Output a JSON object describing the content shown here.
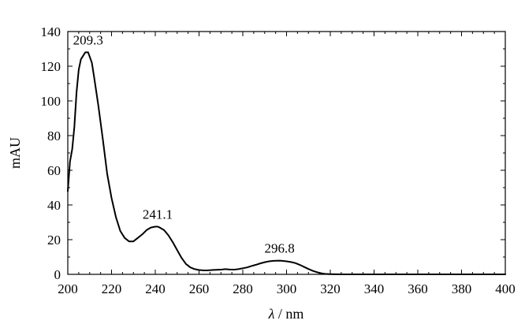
{
  "chart_data": {
    "type": "line",
    "xlabel_symbol": "λ",
    "xlabel_unit": " / nm",
    "ylabel": "mAU",
    "xlim": [
      200,
      400
    ],
    "ylim": [
      0,
      140
    ],
    "x_ticks": [
      200,
      220,
      240,
      260,
      280,
      300,
      320,
      340,
      360,
      380,
      400
    ],
    "y_ticks": [
      0,
      20,
      40,
      60,
      80,
      100,
      120,
      140
    ],
    "grid": false,
    "series": [
      {
        "x": [
          200,
          201,
          202,
          203,
          204,
          205,
          206,
          207,
          208,
          209.3,
          211,
          212,
          214,
          216,
          218,
          220,
          222,
          224,
          226,
          228,
          230,
          232,
          234,
          236,
          238,
          240,
          241.1,
          242,
          244,
          246,
          248,
          250,
          252,
          254,
          256,
          258,
          260,
          262,
          264,
          266,
          268,
          270,
          272,
          274,
          276,
          278,
          280,
          282,
          284,
          286,
          288,
          290,
          292,
          294,
          296.8,
          298,
          300,
          302,
          304,
          306,
          308,
          310,
          312,
          314,
          316,
          318,
          320,
          322,
          325,
          330,
          340,
          360,
          380,
          400
        ],
        "y": [
          48,
          65,
          72,
          85,
          105,
          118,
          124,
          126,
          128,
          128,
          122,
          114,
          97,
          78,
          58,
          44,
          33,
          25,
          21,
          19,
          19,
          21,
          23,
          25.5,
          27,
          27.5,
          27.5,
          27,
          25.5,
          22.5,
          18.5,
          14,
          9.5,
          6,
          4,
          3,
          2.5,
          2.3,
          2.3,
          2.5,
          2.6,
          2.7,
          3,
          2.8,
          2.7,
          3,
          3.5,
          4,
          4.8,
          5.5,
          6.3,
          7,
          7.5,
          7.8,
          7.9,
          7.8,
          7.5,
          7.1,
          6.5,
          5.5,
          4.3,
          3.1,
          2,
          1.2,
          0.6,
          0.2,
          0.1,
          0.05,
          0,
          0,
          0,
          0,
          0,
          0
        ]
      }
    ],
    "annotations": [
      {
        "x": 209.3,
        "y": 128,
        "text": "209.3"
      },
      {
        "x": 241.1,
        "y": 27.5,
        "text": "241.1"
      },
      {
        "x": 296.8,
        "y": 7.9,
        "text": "296.8"
      }
    ]
  }
}
